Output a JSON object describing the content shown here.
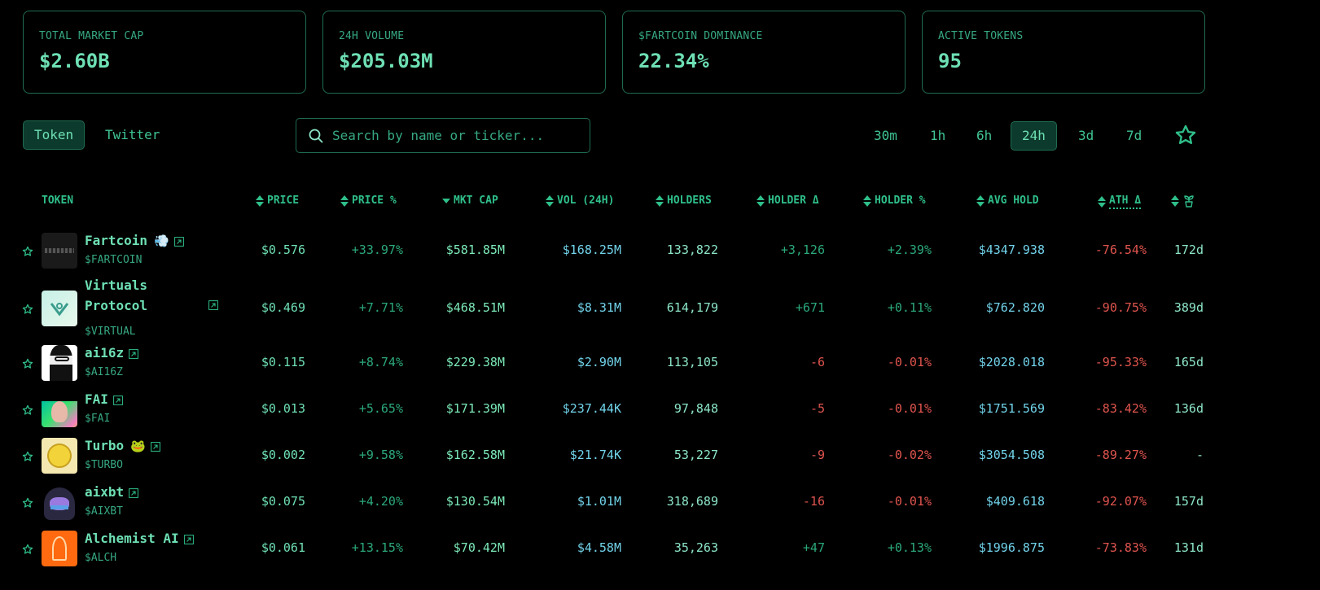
{
  "stats": [
    {
      "label": "TOTAL MARKET CAP",
      "value": "$2.60B"
    },
    {
      "label": "24H VOLUME",
      "value": "$205.03M"
    },
    {
      "label": "$FARTCOIN DOMINANCE",
      "value": "22.34%"
    },
    {
      "label": "ACTIVE TOKENS",
      "value": "95"
    }
  ],
  "view_tabs": [
    {
      "label": "Token",
      "active": true
    },
    {
      "label": "Twitter",
      "active": false
    }
  ],
  "search": {
    "placeholder": "Search by name or ticker...",
    "value": ""
  },
  "timeframes": [
    {
      "label": "30m",
      "active": false
    },
    {
      "label": "1h",
      "active": false
    },
    {
      "label": "6h",
      "active": false
    },
    {
      "label": "24h",
      "active": true
    },
    {
      "label": "3d",
      "active": false
    },
    {
      "label": "7d",
      "active": false
    }
  ],
  "favorites_icon": "star-outline-icon",
  "table": {
    "columns": [
      {
        "key": "token",
        "label": "TOKEN",
        "sort": "none"
      },
      {
        "key": "price",
        "label": "PRICE",
        "sort": "both"
      },
      {
        "key": "price_pct",
        "label": "PRICE %",
        "sort": "both"
      },
      {
        "key": "mcap",
        "label": "MKT CAP",
        "sort": "desc"
      },
      {
        "key": "vol",
        "label": "VOL (24H)",
        "sort": "both"
      },
      {
        "key": "holders",
        "label": "HOLDERS",
        "sort": "both"
      },
      {
        "key": "holder_delta",
        "label": "HOLDER Δ",
        "sort": "both"
      },
      {
        "key": "holder_pct",
        "label": "HOLDER %",
        "sort": "both"
      },
      {
        "key": "avg_hold",
        "label": "AVG HOLD",
        "sort": "both"
      },
      {
        "key": "ath_delta",
        "label": "ATH Δ",
        "sort": "both"
      },
      {
        "key": "age",
        "label": "",
        "icon": "sprout-icon",
        "sort": "both"
      }
    ],
    "rows": [
      {
        "name": "Fartcoin",
        "ticker": "$FARTCOIN",
        "badge": "💨",
        "price": "$0.576",
        "price_pct": "+33.97%",
        "mcap": "$581.85M",
        "vol": "$168.25M",
        "holders": "133,822",
        "holder_delta": "+3,126",
        "holder_pct": "+2.39%",
        "avg_hold": "$4347.938",
        "ath_delta": "-76.54%",
        "age": "172d"
      },
      {
        "name": "Virtuals Protocol",
        "name_l1": "Virtuals",
        "name_l2": "Protocol",
        "ticker": "$VIRTUAL",
        "badge": "",
        "price": "$0.469",
        "price_pct": "+7.71%",
        "mcap": "$468.51M",
        "vol": "$8.31M",
        "holders": "614,179",
        "holder_delta": "+671",
        "holder_pct": "+0.11%",
        "avg_hold": "$762.820",
        "ath_delta": "-90.75%",
        "age": "389d"
      },
      {
        "name": "ai16z",
        "ticker": "$AI16Z",
        "badge": "",
        "price": "$0.115",
        "price_pct": "+8.74%",
        "mcap": "$229.38M",
        "vol": "$2.90M",
        "holders": "113,105",
        "holder_delta": "-6",
        "holder_pct": "-0.01%",
        "avg_hold": "$2028.018",
        "ath_delta": "-95.33%",
        "age": "165d"
      },
      {
        "name": "FAI",
        "ticker": "$FAI",
        "badge": "",
        "price": "$0.013",
        "price_pct": "+5.65%",
        "mcap": "$171.39M",
        "vol": "$237.44K",
        "holders": "97,848",
        "holder_delta": "-5",
        "holder_pct": "-0.01%",
        "avg_hold": "$1751.569",
        "ath_delta": "-83.42%",
        "age": "136d"
      },
      {
        "name": "Turbo",
        "ticker": "$TURBO",
        "badge": "🐸",
        "price": "$0.002",
        "price_pct": "+9.58%",
        "mcap": "$162.58M",
        "vol": "$21.74K",
        "holders": "53,227",
        "holder_delta": "-9",
        "holder_pct": "-0.02%",
        "avg_hold": "$3054.508",
        "ath_delta": "-89.27%",
        "age": "-"
      },
      {
        "name": "aixbt",
        "ticker": "$AIXBT",
        "badge": "",
        "price": "$0.075",
        "price_pct": "+4.20%",
        "mcap": "$130.54M",
        "vol": "$1.01M",
        "holders": "318,689",
        "holder_delta": "-16",
        "holder_pct": "-0.01%",
        "avg_hold": "$409.618",
        "ath_delta": "-92.07%",
        "age": "157d"
      },
      {
        "name": "Alchemist AI",
        "ticker": "$ALCH",
        "badge": "",
        "price": "$0.061",
        "price_pct": "+13.15%",
        "mcap": "$70.42M",
        "vol": "$4.58M",
        "holders": "35,263",
        "holder_delta": "+47",
        "holder_pct": "+0.13%",
        "avg_hold": "$1996.875",
        "ath_delta": "-73.83%",
        "age": "131d"
      }
    ]
  },
  "colors": {
    "accent": "#6ee0b4",
    "border": "#1f6b50",
    "positive": "#2ba87a",
    "negative": "#e0544e",
    "volume": "#71d3ea"
  }
}
